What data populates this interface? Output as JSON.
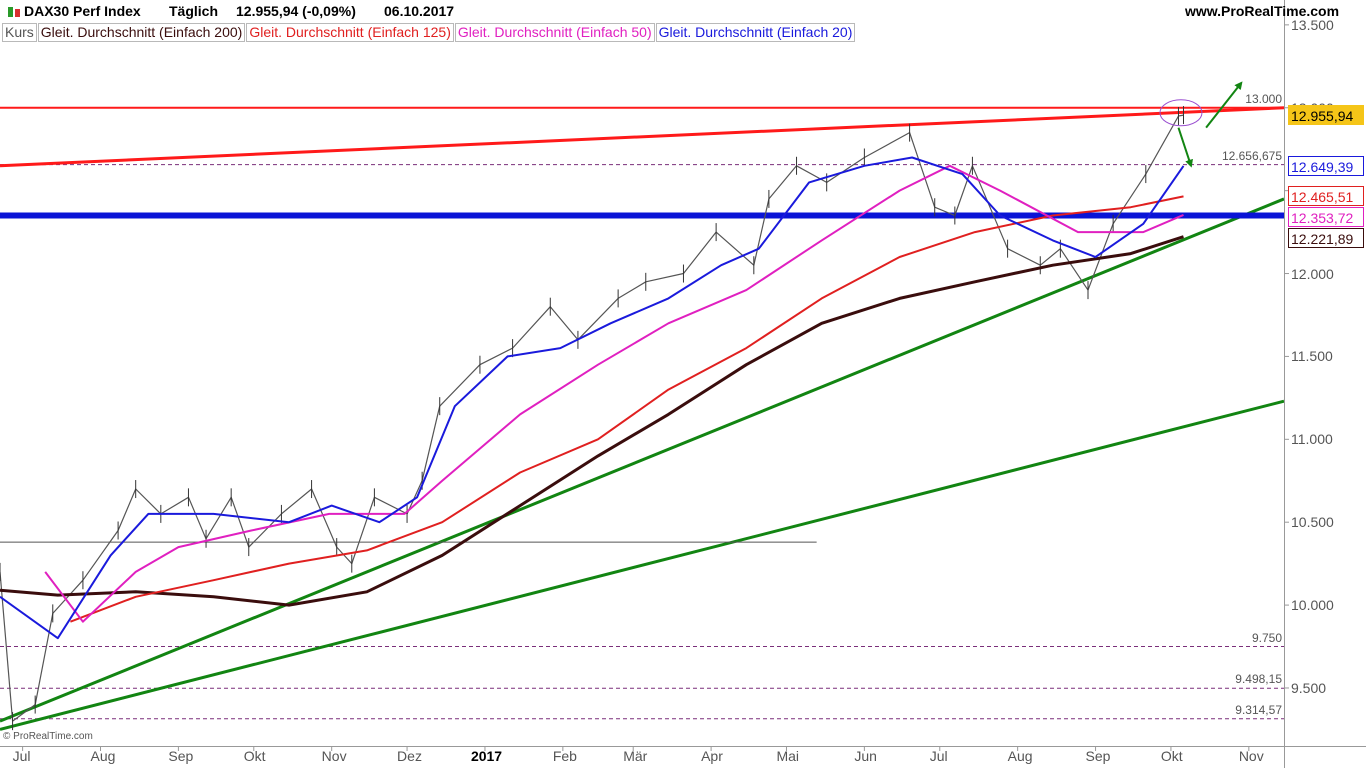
{
  "header": {
    "symbol": "DAX30 Perf Index",
    "timeframe": "Täglich",
    "price": "12.955,94 (-0,09%)",
    "date": "06.10.2017",
    "site": "www.ProRealTime.com"
  },
  "legend": [
    {
      "label": "Kurs",
      "color": "#555555"
    },
    {
      "label": "Gleit. Durchschnitt (Einfach 200)",
      "color": "#3a0d0d"
    },
    {
      "label": "Gleit. Durchschnitt (Einfach 125)",
      "color": "#e02020"
    },
    {
      "label": "Gleit. Durchschnitt (Einfach 50)",
      "color": "#e020c0"
    },
    {
      "label": "Gleit. Durchschnitt (Einfach 20)",
      "color": "#1a1adc"
    }
  ],
  "price_tags": [
    {
      "text": "12.955,94",
      "value": 12955.94,
      "bg": "#f5c518",
      "border": "#f5c518",
      "color": "#000000"
    },
    {
      "text": "12.649,39",
      "value": 12649.39,
      "bg": "#ffffff",
      "border": "#1a1adc",
      "color": "#1a1adc"
    },
    {
      "text": "12.465,51",
      "value": 12465.51,
      "bg": "#ffffff",
      "border": "#e02020",
      "color": "#e02020"
    },
    {
      "text": "12.353,72",
      "value": 12353.72,
      "bg": "#ffffff",
      "border": "#e020c0",
      "color": "#e020c0"
    },
    {
      "text": "12.221,89",
      "value": 12221.89,
      "bg": "#ffffff",
      "border": "#3a0d0d",
      "color": "#3a0d0d"
    }
  ],
  "level_labels": [
    {
      "text": "13.000",
      "value": 13000
    },
    {
      "text": "12.656,675",
      "value": 12656.675
    },
    {
      "text": "9.750",
      "value": 9750
    },
    {
      "text": "9.498,15",
      "value": 9498.15
    },
    {
      "text": "9.314,57",
      "value": 9314.57
    }
  ],
  "watermark": "© ProRealTime.com",
  "chart_data": {
    "type": "line",
    "title": "DAX30 Perf Index",
    "ylim": [
      9150,
      13650
    ],
    "y_ticks": [
      9500,
      10000,
      10500,
      11000,
      11500,
      12000,
      12500,
      13000,
      13500
    ],
    "y_tick_labels": [
      "9.500",
      "10.000",
      "10.500",
      "11.000",
      "11.500",
      "12.000",
      "12.500",
      "13.000",
      "13.500"
    ],
    "x_ticks": [
      {
        "label": "Jul",
        "date": "2016-07-01"
      },
      {
        "label": "Aug",
        "date": "2016-08-01"
      },
      {
        "label": "Sep",
        "date": "2016-09-01"
      },
      {
        "label": "Okt",
        "date": "2016-10-01"
      },
      {
        "label": "Nov",
        "date": "2016-11-01"
      },
      {
        "label": "Dez",
        "date": "2016-12-01"
      },
      {
        "label": "2017",
        "date": "2017-01-01",
        "bold": true
      },
      {
        "label": "Feb",
        "date": "2017-02-01"
      },
      {
        "label": "Mär",
        "date": "2017-03-01"
      },
      {
        "label": "Apr",
        "date": "2017-04-01"
      },
      {
        "label": "Mai",
        "date": "2017-05-01"
      },
      {
        "label": "Jun",
        "date": "2017-06-01"
      },
      {
        "label": "Jul",
        "date": "2017-07-01"
      },
      {
        "label": "Aug",
        "date": "2017-08-01"
      },
      {
        "label": "Sep",
        "date": "2017-09-01"
      },
      {
        "label": "Okt",
        "date": "2017-10-01"
      },
      {
        "label": "Nov",
        "date": "2017-11-01"
      }
    ],
    "series": [
      {
        "name": "Kurs",
        "color": "#555555",
        "points": [
          [
            "2016-06-22",
            10200
          ],
          [
            "2016-06-27",
            9300
          ],
          [
            "2016-07-06",
            9400
          ],
          [
            "2016-07-13",
            9950
          ],
          [
            "2016-07-25",
            10150
          ],
          [
            "2016-08-08",
            10450
          ],
          [
            "2016-08-15",
            10700
          ],
          [
            "2016-08-25",
            10550
          ],
          [
            "2016-09-05",
            10650
          ],
          [
            "2016-09-12",
            10400
          ],
          [
            "2016-09-22",
            10650
          ],
          [
            "2016-09-29",
            10350
          ],
          [
            "2016-10-12",
            10550
          ],
          [
            "2016-10-24",
            10700
          ],
          [
            "2016-11-03",
            10350
          ],
          [
            "2016-11-09",
            10250
          ],
          [
            "2016-11-18",
            10650
          ],
          [
            "2016-12-01",
            10550
          ],
          [
            "2016-12-07",
            10750
          ],
          [
            "2016-12-14",
            11200
          ],
          [
            "2016-12-30",
            11450
          ],
          [
            "2017-01-12",
            11550
          ],
          [
            "2017-01-27",
            11800
          ],
          [
            "2017-02-07",
            11600
          ],
          [
            "2017-02-23",
            11850
          ],
          [
            "2017-03-06",
            11950
          ],
          [
            "2017-03-21",
            12000
          ],
          [
            "2017-04-03",
            12250
          ],
          [
            "2017-04-18",
            12050
          ],
          [
            "2017-04-24",
            12450
          ],
          [
            "2017-05-05",
            12650
          ],
          [
            "2017-05-17",
            12550
          ],
          [
            "2017-06-01",
            12700
          ],
          [
            "2017-06-19",
            12850
          ],
          [
            "2017-06-29",
            12400
          ],
          [
            "2017-07-07",
            12350
          ],
          [
            "2017-07-14",
            12650
          ],
          [
            "2017-07-28",
            12150
          ],
          [
            "2017-08-10",
            12050
          ],
          [
            "2017-08-18",
            12150
          ],
          [
            "2017-08-29",
            11900
          ],
          [
            "2017-09-08",
            12300
          ],
          [
            "2017-09-21",
            12600
          ],
          [
            "2017-10-04",
            12950
          ],
          [
            "2017-10-06",
            12955.94
          ]
        ]
      },
      {
        "name": "Gleit. Durchschnitt (Einfach 200)",
        "color": "#3a0d0d",
        "points": [
          [
            "2016-06-22",
            10090
          ],
          [
            "2016-07-15",
            10060
          ],
          [
            "2016-08-15",
            10080
          ],
          [
            "2016-09-15",
            10050
          ],
          [
            "2016-10-15",
            10000
          ],
          [
            "2016-11-15",
            10080
          ],
          [
            "2016-12-15",
            10300
          ],
          [
            "2017-01-15",
            10600
          ],
          [
            "2017-02-15",
            10900
          ],
          [
            "2017-03-15",
            11150
          ],
          [
            "2017-04-15",
            11450
          ],
          [
            "2017-05-15",
            11700
          ],
          [
            "2017-06-15",
            11850
          ],
          [
            "2017-07-15",
            11950
          ],
          [
            "2017-08-15",
            12050
          ],
          [
            "2017-09-15",
            12120
          ],
          [
            "2017-10-06",
            12221.89
          ]
        ]
      },
      {
        "name": "Gleit. Durchschnitt (Einfach 125)",
        "color": "#e02020",
        "points": [
          [
            "2016-07-20",
            9900
          ],
          [
            "2016-08-15",
            10050
          ],
          [
            "2016-09-15",
            10150
          ],
          [
            "2016-10-15",
            10250
          ],
          [
            "2016-11-15",
            10330
          ],
          [
            "2016-12-15",
            10500
          ],
          [
            "2017-01-15",
            10800
          ],
          [
            "2017-02-15",
            11000
          ],
          [
            "2017-03-15",
            11300
          ],
          [
            "2017-04-15",
            11550
          ],
          [
            "2017-05-15",
            11850
          ],
          [
            "2017-06-15",
            12100
          ],
          [
            "2017-07-15",
            12250
          ],
          [
            "2017-08-15",
            12350
          ],
          [
            "2017-09-15",
            12400
          ],
          [
            "2017-10-06",
            12465.51
          ]
        ]
      },
      {
        "name": "Gleit. Durchschnitt (Einfach 50)",
        "color": "#e020c0",
        "points": [
          [
            "2016-07-10",
            10200
          ],
          [
            "2016-07-25",
            9900
          ],
          [
            "2016-08-15",
            10200
          ],
          [
            "2016-09-01",
            10350
          ],
          [
            "2016-09-30",
            10450
          ],
          [
            "2016-10-31",
            10550
          ],
          [
            "2016-11-30",
            10550
          ],
          [
            "2016-12-15",
            10750
          ],
          [
            "2017-01-15",
            11150
          ],
          [
            "2017-02-15",
            11450
          ],
          [
            "2017-03-15",
            11700
          ],
          [
            "2017-04-15",
            11900
          ],
          [
            "2017-05-15",
            12200
          ],
          [
            "2017-06-15",
            12500
          ],
          [
            "2017-07-05",
            12650
          ],
          [
            "2017-07-25",
            12500
          ],
          [
            "2017-08-25",
            12250
          ],
          [
            "2017-09-20",
            12250
          ],
          [
            "2017-10-06",
            12353.72
          ]
        ]
      },
      {
        "name": "Gleit. Durchschnitt (Einfach 20)",
        "color": "#1a1adc",
        "points": [
          [
            "2016-06-22",
            10050
          ],
          [
            "2016-07-15",
            9800
          ],
          [
            "2016-08-05",
            10300
          ],
          [
            "2016-08-20",
            10550
          ],
          [
            "2016-09-15",
            10550
          ],
          [
            "2016-10-15",
            10500
          ],
          [
            "2016-11-01",
            10600
          ],
          [
            "2016-11-20",
            10500
          ],
          [
            "2016-12-05",
            10650
          ],
          [
            "2016-12-20",
            11200
          ],
          [
            "2017-01-10",
            11500
          ],
          [
            "2017-01-31",
            11550
          ],
          [
            "2017-02-20",
            11700
          ],
          [
            "2017-03-15",
            11850
          ],
          [
            "2017-04-05",
            12050
          ],
          [
            "2017-04-20",
            12150
          ],
          [
            "2017-05-10",
            12550
          ],
          [
            "2017-06-01",
            12650
          ],
          [
            "2017-06-20",
            12700
          ],
          [
            "2017-07-10",
            12600
          ],
          [
            "2017-07-25",
            12350
          ],
          [
            "2017-08-15",
            12200
          ],
          [
            "2017-09-01",
            12100
          ],
          [
            "2017-09-20",
            12300
          ],
          [
            "2017-10-06",
            12649.39
          ]
        ]
      }
    ],
    "annotations": {
      "lines": [
        {
          "from": [
            "2016-06-22",
            12650
          ],
          "to": [
            "2017-11-15",
            13000
          ],
          "color": "#ff1a1a",
          "width": 3
        },
        {
          "from": [
            "2016-06-22",
            9300
          ],
          "to": [
            "2017-11-15",
            12450
          ],
          "color": "#128512",
          "width": 3
        },
        {
          "from": [
            "2016-06-22",
            9250
          ],
          "to": [
            "2017-11-15",
            11230
          ],
          "color": "#128512",
          "width": 3
        },
        {
          "from": [
            "2016-06-22",
            12350
          ],
          "to": [
            "2017-11-15",
            12350
          ],
          "color": "#0a14d6",
          "width": 6
        },
        {
          "from": [
            "2016-06-22",
            13000
          ],
          "to": [
            "2017-11-15",
            13000
          ],
          "color": "#ff1a1a",
          "width": 2
        },
        {
          "from": [
            "2016-06-22",
            10380
          ],
          "to": [
            "2017-05-13",
            10380
          ],
          "color": "#555555",
          "width": 1
        }
      ],
      "dashed_levels": [
        12656.675,
        9750,
        9498.15,
        9314.57
      ],
      "arrows": [
        {
          "from": [
            "2017-10-04",
            12880
          ],
          "to": [
            "2017-10-09",
            12650
          ],
          "color": "#128512"
        },
        {
          "from": [
            "2017-10-15",
            12880
          ],
          "to": [
            "2017-10-29",
            13150
          ],
          "color": "#128512"
        }
      ],
      "ellipse": {
        "center": [
          "2017-10-05",
          12970
        ],
        "color": "#9a4fd0"
      }
    }
  }
}
